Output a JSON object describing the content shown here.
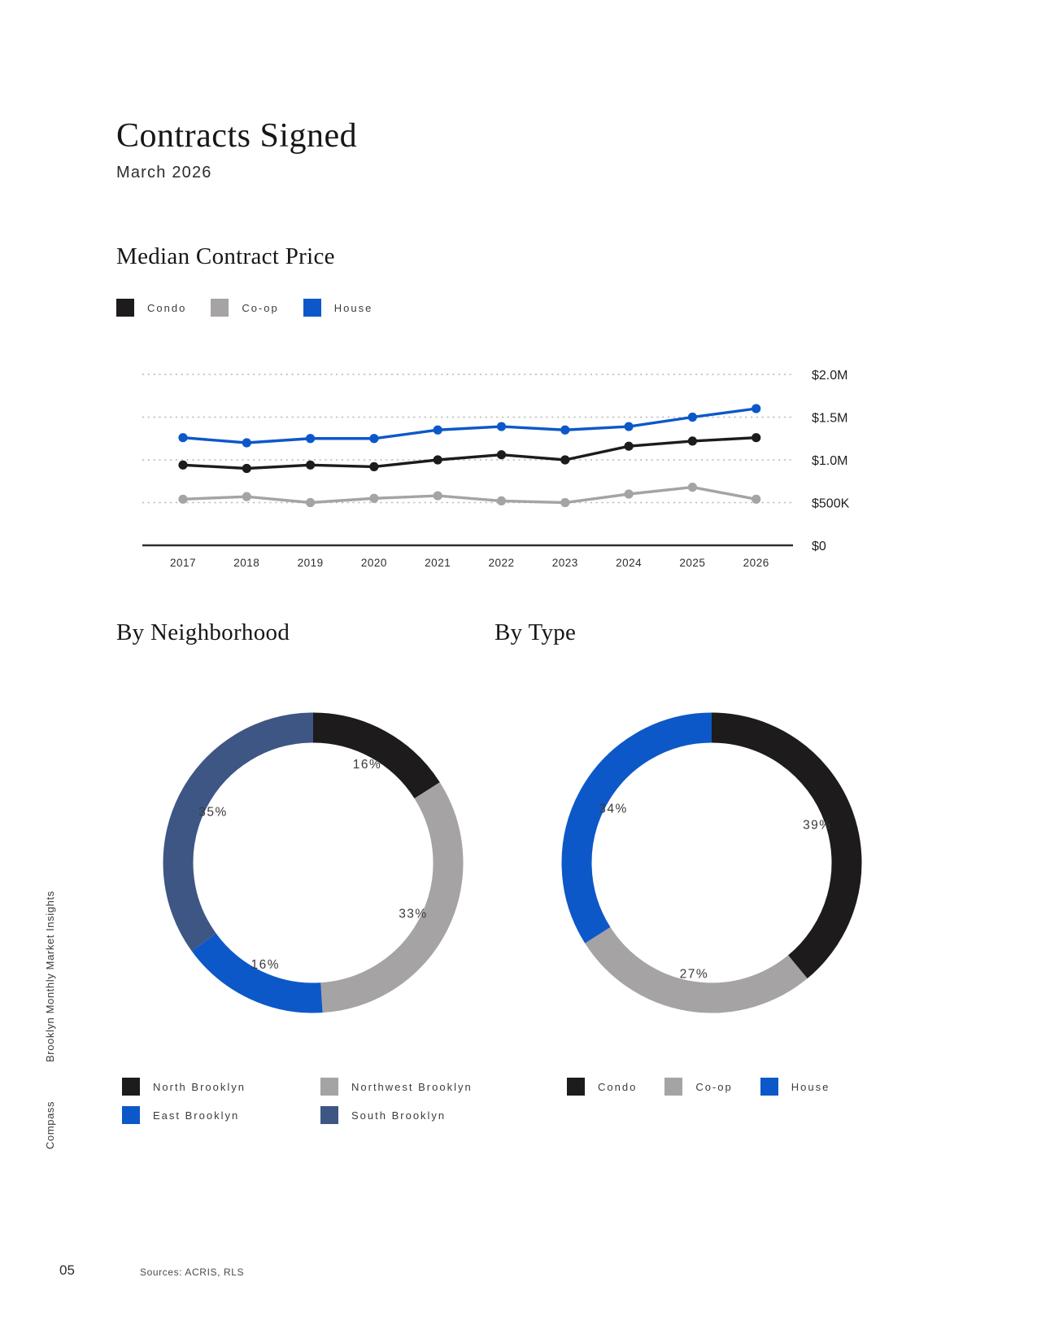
{
  "page": {
    "title": "Contracts Signed",
    "subtitle": "March 2026",
    "sidebar_top": "Brooklyn Monthly Market Insights",
    "sidebar_bottom": "Compass",
    "page_number": "05",
    "sources": "Sources: ACRIS, RLS"
  },
  "section_titles": {
    "median_price": "Median Contract Price",
    "by_neighborhood": "By Neighborhood",
    "by_type": "By Type"
  },
  "chart_data": [
    {
      "type": "line",
      "title": "Median Contract Price",
      "x": [
        2017,
        2018,
        2019,
        2020,
        2021,
        2022,
        2023,
        2024,
        2025,
        2026
      ],
      "unit": "USD millions",
      "ylim": [
        0,
        2.0
      ],
      "grid": "dotted horizontal",
      "legend_position": "top-left",
      "yticks": [
        {
          "label": "$2.0M",
          "value": 2.0
        },
        {
          "label": "$1.5M",
          "value": 1.5
        },
        {
          "label": "$1.0M",
          "value": 1.0
        },
        {
          "label": "$500K",
          "value": 0.5
        },
        {
          "label": "$0",
          "value": 0
        }
      ],
      "series": [
        {
          "name": "Condo",
          "color": "#1d1b1c",
          "values": [
            0.94,
            0.9,
            0.94,
            0.92,
            1.0,
            1.06,
            1.0,
            1.16,
            1.22,
            1.26
          ]
        },
        {
          "name": "Co-op",
          "color": "#a5a3a4",
          "values": [
            0.54,
            0.57,
            0.5,
            0.55,
            0.58,
            0.52,
            0.5,
            0.6,
            0.68,
            0.54
          ]
        },
        {
          "name": "House",
          "color": "#0d58c8",
          "values": [
            1.26,
            1.2,
            1.25,
            1.25,
            1.35,
            1.39,
            1.35,
            1.39,
            1.5,
            1.6
          ]
        }
      ]
    },
    {
      "type": "pie",
      "subtype": "donut",
      "title": "By Neighborhood",
      "categories": [
        "North Brooklyn",
        "Northwest Brooklyn",
        "East Brooklyn",
        "South Brooklyn"
      ],
      "values": [
        16,
        33,
        16,
        35
      ],
      "labels": [
        "16%",
        "33%",
        "16%",
        "35%"
      ],
      "colors": [
        "#1d1b1c",
        "#a5a3a4",
        "#0d58c8",
        "#3e5684"
      ],
      "legend_position": "bottom"
    },
    {
      "type": "pie",
      "subtype": "donut",
      "title": "By Type",
      "categories": [
        "Condo",
        "Co-op",
        "House"
      ],
      "values": [
        39,
        27,
        34
      ],
      "labels": [
        "39%",
        "27%",
        "34%"
      ],
      "colors": [
        "#1d1b1c",
        "#a5a3a4",
        "#0d58c8"
      ],
      "legend_position": "bottom"
    }
  ]
}
